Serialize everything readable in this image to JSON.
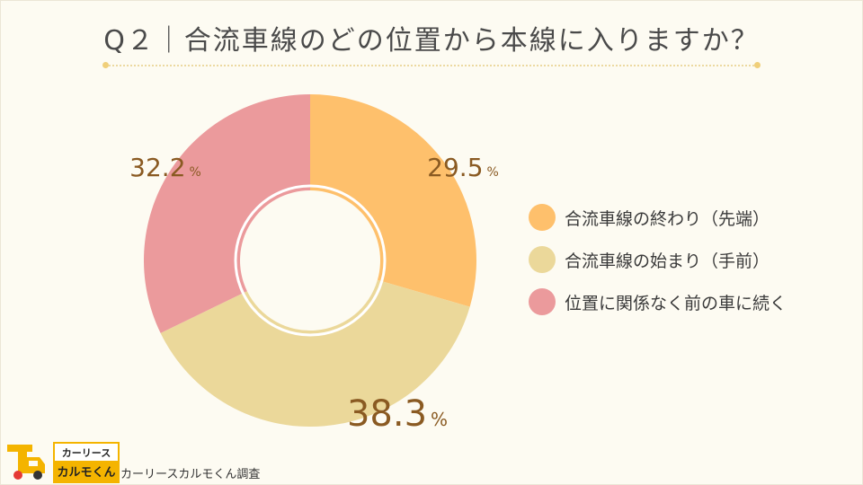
{
  "title": "Q２｜合流車線のどの位置から本線に入りますか？",
  "chart_data": {
    "type": "pie",
    "categories": [
      "合流車線の終わり（先端）",
      "合流車線の始まり（手前）",
      "位置に関係なく前の車に続く"
    ],
    "values": [
      29.5,
      38.3,
      32.2
    ],
    "value_labels": [
      "29.5",
      "38.3",
      "32.2"
    ],
    "unit": "%",
    "colors": [
      "#fec06c",
      "#ebd89a",
      "#eb9a9c"
    ],
    "legend_position": "right",
    "style": "donut"
  },
  "logo": {
    "top": "カーリース",
    "bottom": "カルモくん"
  },
  "source": "カーリースカルモくん調査"
}
